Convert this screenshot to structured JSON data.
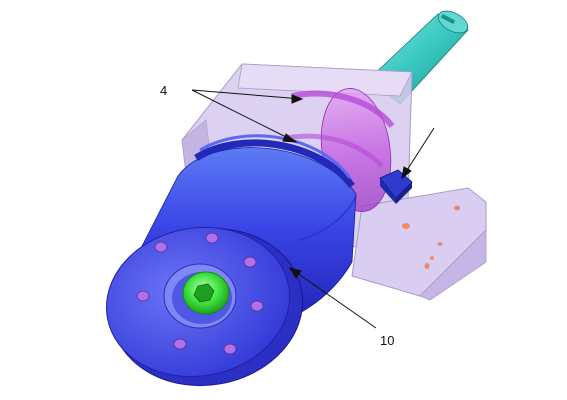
{
  "labels": {
    "part_4": "4",
    "part_10": "10"
  },
  "colors": {
    "background": "#ffffff",
    "housing": "#d7c9ef",
    "sleeve": "#cf63e8",
    "cylinder": "#3b3fe6",
    "end_face": "#4a55ee",
    "shaft": "#38c8c0",
    "socket_screw": "#3adf3a",
    "bolt_heads": "#b070e8",
    "port_block": "#1f2aa8",
    "holes": "#ec8a6a"
  }
}
